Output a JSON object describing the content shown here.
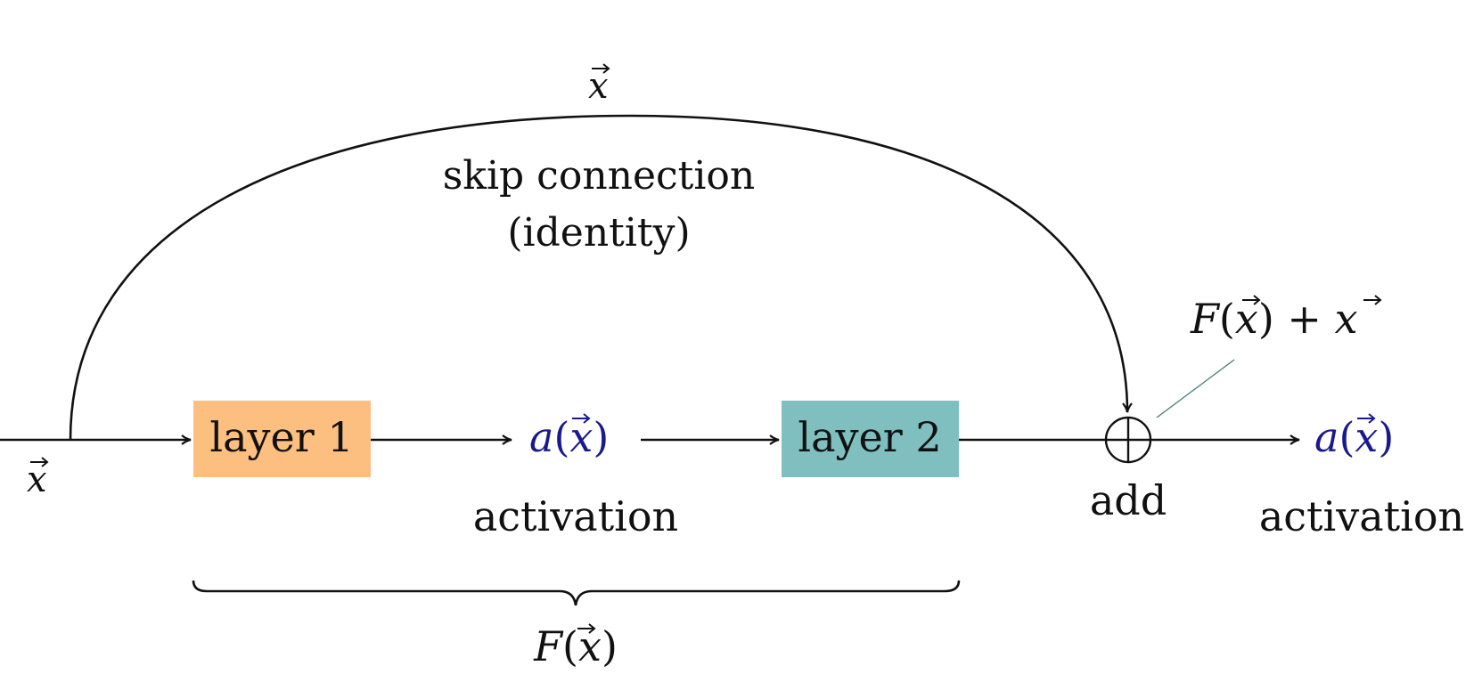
{
  "colors": {
    "layer1_fill": "#fdbf80",
    "layer2_fill": "#80bfbf",
    "activation_text": "#1a1a8c",
    "lines": "#111111",
    "annotation_line": "#4a7f7a"
  },
  "input": {
    "symbol": "x"
  },
  "skip": {
    "symbol": "x",
    "label_line1": "skip connection",
    "label_line2": "(identity)"
  },
  "layer1": {
    "label": "layer 1"
  },
  "layer2": {
    "label": "layer 2"
  },
  "activation1": {
    "func": "a",
    "arg": "x",
    "caption": "activation"
  },
  "add": {
    "symbol": "⊕",
    "caption": "add"
  },
  "sum_label": {
    "func": "F",
    "arg": "x",
    "plus": "+",
    "term": "x"
  },
  "activation2": {
    "func": "a",
    "arg": "x",
    "caption": "activation"
  },
  "brace": {
    "func": "F",
    "arg": "x"
  },
  "icons": {
    "vector": "vector-arrow-icon",
    "arrowhead": "arrowhead-icon",
    "add": "circled-plus-icon",
    "brace": "curly-brace-icon"
  }
}
